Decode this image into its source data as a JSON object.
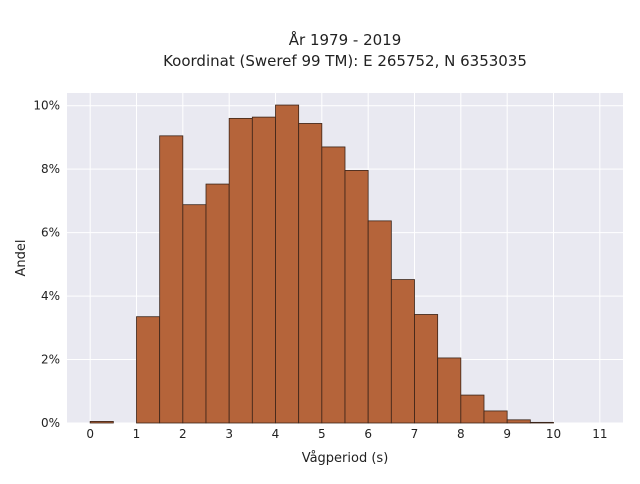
{
  "chart_data": {
    "type": "bar",
    "title_line1": "År 1979 - 2019",
    "title_line2": "Koordinat (Sweref 99 TM): E 265752, N 6353035",
    "xlabel": "Vågperiod (s)",
    "ylabel": "Andel",
    "xlim": [
      -0.5,
      11.5
    ],
    "ylim": [
      0,
      10.4
    ],
    "x_ticks": [
      0,
      1,
      2,
      3,
      4,
      5,
      6,
      7,
      8,
      9,
      10,
      11
    ],
    "y_ticks": [
      0,
      2,
      4,
      6,
      8,
      10
    ],
    "y_tick_suffix": "%",
    "bin_width": 0.5,
    "bins": [
      {
        "start": 0.0,
        "value": 0.05
      },
      {
        "start": 0.5,
        "value": 0.0
      },
      {
        "start": 1.0,
        "value": 3.35
      },
      {
        "start": 1.5,
        "value": 9.05
      },
      {
        "start": 2.0,
        "value": 6.88
      },
      {
        "start": 2.5,
        "value": 7.53
      },
      {
        "start": 3.0,
        "value": 9.6
      },
      {
        "start": 3.5,
        "value": 9.64
      },
      {
        "start": 4.0,
        "value": 10.02
      },
      {
        "start": 4.5,
        "value": 9.44
      },
      {
        "start": 5.0,
        "value": 8.7
      },
      {
        "start": 5.5,
        "value": 7.96
      },
      {
        "start": 6.0,
        "value": 6.37
      },
      {
        "start": 6.5,
        "value": 4.52
      },
      {
        "start": 7.0,
        "value": 3.42
      },
      {
        "start": 7.5,
        "value": 2.05
      },
      {
        "start": 8.0,
        "value": 0.88
      },
      {
        "start": 8.5,
        "value": 0.38
      },
      {
        "start": 9.0,
        "value": 0.1
      },
      {
        "start": 9.5,
        "value": 0.02
      },
      {
        "start": 10.0,
        "value": 0.0
      }
    ],
    "grid": true,
    "colors": {
      "bar_fill": "#b5643a",
      "bar_edge": "#3b2418",
      "plot_bg": "#e9e9f1",
      "grid": "#ffffff"
    }
  }
}
